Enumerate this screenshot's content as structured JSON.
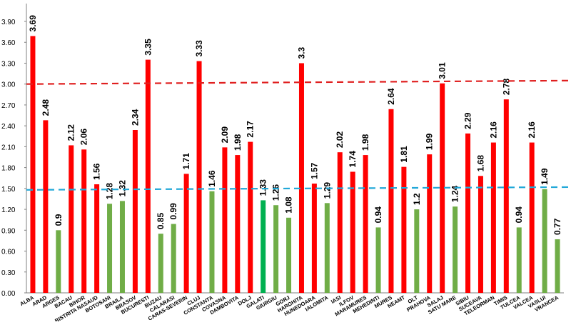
{
  "chart_data": {
    "type": "bar",
    "title": "",
    "xlabel": "",
    "ylabel": "",
    "ylim": [
      0,
      3.9
    ],
    "yticks": [
      "0.00",
      "0.30",
      "0.60",
      "0.90",
      "1.20",
      "1.50",
      "1.80",
      "2.10",
      "2.40",
      "2.70",
      "3.00",
      "3.30",
      "3.60",
      "3.90"
    ],
    "grid": false,
    "legend": "none",
    "categories": [
      "ALBA",
      "ARAD",
      "ARGES",
      "BACAU",
      "BIHOR",
      "BISTRITA NASAUD",
      "BOTOSANI",
      "BRAILA",
      "BRASOV",
      "BUCURESTI",
      "BUZAU",
      "CALARASI",
      "CARAS-SEVERIN",
      "CLUJ",
      "CONSTANTA",
      "COVASNA",
      "DAMBOVITA",
      "DOLJ",
      "GALATI",
      "GIURGIU",
      "GORJ",
      "HARGHITA",
      "HUNEDOARA",
      "IALOMITA",
      "IASI",
      "ILFOV",
      "MARAMURES",
      "MEHEDINTI",
      "MURES",
      "NEAMT",
      "OLT",
      "PRAHOVA",
      "SALAJ",
      "SATU MARE",
      "SIBIU",
      "SUCEAVA",
      "TELEORMAN",
      "TIMIS",
      "TULCEA",
      "VALCEA",
      "VASLUI",
      "VRANCEA"
    ],
    "values": [
      3.69,
      2.48,
      0.9,
      2.12,
      2.06,
      1.56,
      1.28,
      1.32,
      2.34,
      3.35,
      0.85,
      0.99,
      1.71,
      3.33,
      1.46,
      2.09,
      1.98,
      2.17,
      1.33,
      1.26,
      1.08,
      3.3,
      1.57,
      1.29,
      2.02,
      1.74,
      1.98,
      0.94,
      2.64,
      1.81,
      1.2,
      1.99,
      3.01,
      1.24,
      2.29,
      1.68,
      2.16,
      2.78,
      0.94,
      2.16,
      1.49,
      0.77
    ],
    "value_labels": [
      "3.69",
      "2.48",
      "0.9",
      "2.12",
      "2.06",
      "1.56",
      "1.28",
      "1.32",
      "2.34",
      "3.35",
      "0.85",
      "0.99",
      "1.71",
      "3.33",
      "1.46",
      "2.09",
      "1.98",
      "2.17",
      "1.33",
      "1.26",
      "1.08",
      "3.3",
      "1.57",
      "1.29",
      "2.02",
      "1.74",
      "1.98",
      "0.94",
      "2.64",
      "1.81",
      "1.2",
      "1.99",
      "3.01",
      "1.24",
      "2.29",
      "1.68",
      "2.16",
      "2.78",
      "0.94",
      "2.16",
      "1.49",
      "0.77"
    ],
    "bar_colors": [
      "red",
      "red",
      "green",
      "red",
      "red",
      "red",
      "green",
      "green",
      "red",
      "red",
      "green",
      "green",
      "red",
      "red",
      "green",
      "red",
      "red",
      "red",
      "highlight",
      "green",
      "green",
      "red",
      "red",
      "green",
      "red",
      "red",
      "red",
      "green",
      "red",
      "red",
      "green",
      "red",
      "red",
      "green",
      "red",
      "red",
      "red",
      "red",
      "green",
      "red",
      "green",
      "green"
    ],
    "reference_lines": [
      {
        "style": "dashed",
        "color": "#e02020",
        "y_start": 3.0,
        "y_end": 3.05
      },
      {
        "style": "dashed",
        "color": "#22a8d8",
        "y_start": 1.48,
        "y_end": 1.52
      }
    ],
    "colors": {
      "red": "#ff0000",
      "green": "#70ad47",
      "highlight": "#00b050",
      "axis": "#808080",
      "text": "#000000"
    }
  }
}
